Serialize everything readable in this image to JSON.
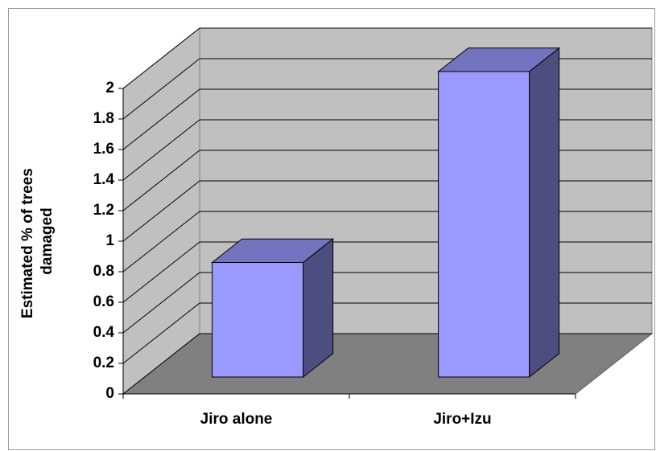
{
  "chart_data": {
    "type": "bar3d",
    "ylabel": [
      "Estimated % of trees",
      "damaged"
    ],
    "categories": [
      "Jiro alone",
      "Jiro+Izu"
    ],
    "values": [
      0.75,
      2.0
    ],
    "color": "#9999ff",
    "ylim": [
      0,
      2
    ],
    "yticks": [
      0,
      0.2,
      0.4,
      0.6,
      0.8,
      1,
      1.2,
      1.4,
      1.6,
      1.8,
      2
    ],
    "grid": true
  }
}
